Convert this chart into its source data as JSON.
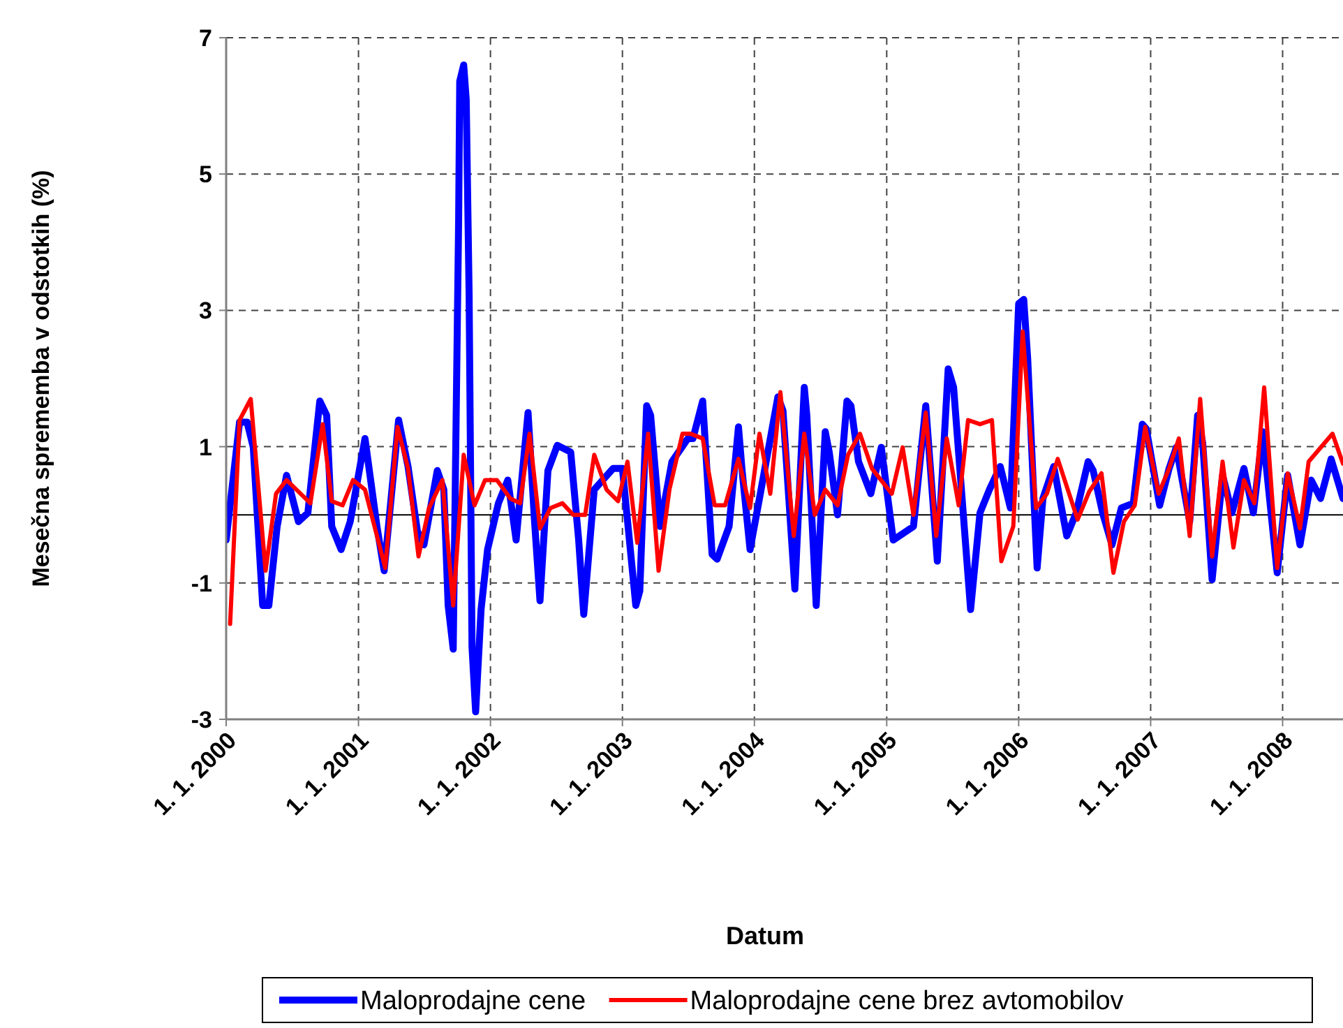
{
  "chart_data": {
    "type": "line",
    "xlabel": "Datum",
    "ylabel": "Mesečna sprememba v odstotkih (%)",
    "xlim": [
      "2000-01-01",
      "2008-06-16"
    ],
    "ylim": [
      -3,
      7
    ],
    "yticks": [
      -3,
      -1,
      1,
      3,
      5,
      7
    ],
    "xticks": [
      {
        "value": "2000-01-01",
        "label": "1. 1. 2000"
      },
      {
        "value": "2001-01-01",
        "label": "1. 1. 2001"
      },
      {
        "value": "2002-01-01",
        "label": "1. 1. 2002"
      },
      {
        "value": "2003-01-01",
        "label": "1. 1. 2003"
      },
      {
        "value": "2004-01-01",
        "label": "1. 1. 2004"
      },
      {
        "value": "2005-01-01",
        "label": "1. 1. 2005"
      },
      {
        "value": "2006-01-01",
        "label": "1. 1. 2006"
      },
      {
        "value": "2007-01-01",
        "label": "1. 1. 2007"
      },
      {
        "value": "2008-01-01",
        "label": "1. 1. 2008"
      }
    ],
    "grid": true,
    "legend": "bottom",
    "line_style": "solid",
    "marker": "none",
    "ref_lines": [
      {
        "axis": "y",
        "value": 0,
        "color": "#000000"
      }
    ],
    "series": [
      {
        "name": "Maloprodajne cene",
        "color": "#0000ff",
        "x": [
          "2000-01-01",
          "2000-02-07",
          "2000-02-28",
          "2000-03-16",
          "2000-04-11",
          "2000-04-28",
          "2000-05-21",
          "2000-06-16",
          "2000-07-19",
          "2000-08-14",
          "2000-09-16",
          "2000-10-05",
          "2000-10-19",
          "2000-11-14",
          "2000-12-09",
          "2001-01-19",
          "2001-02-21",
          "2001-03-13",
          "2001-04-22",
          "2001-05-18",
          "2001-06-13",
          "2001-07-01",
          "2001-08-07",
          "2001-08-25",
          "2001-09-06",
          "2001-09-20",
          "2001-10-05",
          "2001-10-08",
          "2001-10-19",
          "2001-10-26",
          "2001-11-03",
          "2001-11-11",
          "2001-11-21",
          "2001-12-06",
          "2001-12-24",
          "2002-01-23",
          "2002-02-18",
          "2002-03-13",
          "2002-04-15",
          "2002-05-03",
          "2002-05-18",
          "2002-06-09",
          "2002-07-05",
          "2002-08-11",
          "2002-09-02",
          "2002-09-16",
          "2002-10-15",
          "2002-12-06",
          "2003-01-01",
          "2003-02-07",
          "2003-02-18",
          "2003-03-09",
          "2003-03-20",
          "2003-04-15",
          "2003-05-18",
          "2003-07-01",
          "2003-07-15",
          "2003-08-11",
          "2003-09-06",
          "2003-09-20",
          "2003-10-23",
          "2003-11-18",
          "2003-11-28",
          "2003-12-20",
          "2004-01-15",
          "2004-03-06",
          "2004-03-20",
          "2004-04-22",
          "2004-05-18",
          "2004-05-25",
          "2004-06-20",
          "2004-07-15",
          "2004-07-26",
          "2004-08-18",
          "2004-09-13",
          "2004-09-24",
          "2004-10-15",
          "2004-11-18",
          "2004-12-17",
          "2005-01-19",
          "2005-03-16",
          "2005-04-19",
          "2005-05-21",
          "2005-06-20",
          "2005-07-05",
          "2005-08-21",
          "2005-09-16",
          "2005-10-12",
          "2005-11-11",
          "2005-12-09",
          "2006-01-01",
          "2006-01-15",
          "2006-01-26",
          "2006-02-11",
          "2006-02-21",
          "2006-03-09",
          "2006-04-08",
          "2006-05-14",
          "2006-06-09",
          "2006-07-12",
          "2006-07-26",
          "2006-08-21",
          "2006-09-16",
          "2006-10-12",
          "2006-11-14",
          "2006-12-09",
          "2006-12-20",
          "2007-01-26",
          "2007-02-21",
          "2007-03-13",
          "2007-04-19",
          "2007-05-11",
          "2007-05-25",
          "2007-06-20",
          "2007-07-19",
          "2007-08-14",
          "2007-09-16",
          "2007-10-12",
          "2007-11-07",
          "2007-12-17",
          "2008-01-15",
          "2008-02-18",
          "2008-03-20",
          "2008-04-15",
          "2008-05-14",
          "2008-06-16"
        ],
        "values": [
          -0.37,
          1.36,
          1.36,
          0.99,
          -1.33,
          -1.33,
          -0.17,
          0.58,
          -0.1,
          0.03,
          1.67,
          1.46,
          -0.17,
          -0.51,
          -0.1,
          1.12,
          -0.17,
          -0.82,
          1.39,
          0.71,
          -0.24,
          -0.44,
          0.65,
          0.37,
          -1.33,
          -1.97,
          4.32,
          6.36,
          6.6,
          6.09,
          3.23,
          -1.94,
          -2.89,
          -1.39,
          -0.51,
          0.17,
          0.51,
          -0.37,
          1.5,
          -0.1,
          -1.26,
          0.65,
          1.02,
          0.92,
          -0.37,
          -1.46,
          0.37,
          0.68,
          0.68,
          -1.33,
          -1.12,
          1.6,
          1.46,
          -0.17,
          0.78,
          1.12,
          1.12,
          1.67,
          -0.58,
          -0.65,
          -0.17,
          1.29,
          0.65,
          -0.51,
          0.24,
          1.73,
          1.53,
          -1.09,
          1.87,
          1.46,
          -1.33,
          1.22,
          0.92,
          0,
          1.67,
          1.6,
          0.78,
          0.31,
          0.99,
          -0.37,
          -0.17,
          1.6,
          -0.68,
          2.14,
          1.87,
          -1.39,
          0.03,
          0.37,
          0.71,
          0.1,
          3.1,
          3.16,
          2.28,
          0.37,
          -0.78,
          0.24,
          0.71,
          -0.31,
          0.03,
          0.78,
          0.65,
          0.03,
          -0.44,
          0.1,
          0.17,
          1.33,
          1.26,
          0.14,
          0.68,
          0.99,
          -0.1,
          1.46,
          1.05,
          -0.95,
          0.58,
          0.03,
          0.68,
          0.03,
          1.22,
          -0.85,
          0.58,
          -0.44,
          0.51,
          0.24,
          0.82,
          0.24
        ]
      },
      {
        "name": "Maloprodajne cene brez avtomobilov",
        "color": "#ff0000",
        "x": [
          "2000-01-12",
          "2000-02-07",
          "2000-03-09",
          "2000-04-19",
          "2000-05-18",
          "2000-06-16",
          "2000-08-21",
          "2000-09-24",
          "2000-10-19",
          "2000-11-18",
          "2000-12-17",
          "2001-01-19",
          "2001-03-16",
          "2001-04-19",
          "2001-05-18",
          "2001-06-16",
          "2001-07-15",
          "2001-08-21",
          "2001-09-20",
          "2001-10-19",
          "2001-11-18",
          "2001-12-17",
          "2002-01-19",
          "2002-02-25",
          "2002-03-24",
          "2002-04-19",
          "2002-05-18",
          "2002-06-16",
          "2002-07-19",
          "2002-08-18",
          "2002-09-20",
          "2002-10-15",
          "2002-11-18",
          "2002-12-20",
          "2003-01-15",
          "2003-02-11",
          "2003-03-13",
          "2003-04-11",
          "2003-05-11",
          "2003-06-16",
          "2003-07-08",
          "2003-08-11",
          "2003-09-13",
          "2003-10-12",
          "2003-11-18",
          "2003-12-20",
          "2004-01-15",
          "2004-02-14",
          "2004-03-13",
          "2004-04-19",
          "2004-05-18",
          "2004-06-16",
          "2004-07-15",
          "2004-08-18",
          "2004-09-16",
          "2004-10-19",
          "2004-11-21",
          "2005-01-15",
          "2005-02-14",
          "2005-03-16",
          "2005-04-19",
          "2005-05-18",
          "2005-06-16",
          "2005-07-19",
          "2005-08-14",
          "2005-09-16",
          "2005-10-19",
          "2005-11-14",
          "2005-12-17",
          "2006-01-12",
          "2006-02-18",
          "2006-03-20",
          "2006-04-19",
          "2006-06-13",
          "2006-07-15",
          "2006-08-18",
          "2006-09-20",
          "2006-10-19",
          "2006-11-18",
          "2006-12-17",
          "2007-01-23",
          "2007-02-21",
          "2007-03-20",
          "2007-04-19",
          "2007-05-18",
          "2007-06-20",
          "2007-07-19",
          "2007-08-18",
          "2007-09-16",
          "2007-10-15",
          "2007-11-11",
          "2007-12-17",
          "2008-01-15",
          "2008-02-18",
          "2008-03-13",
          "2008-05-18",
          "2008-06-16"
        ],
        "values": [
          -1.6,
          1.39,
          1.7,
          -0.82,
          0.31,
          0.51,
          0.17,
          1.33,
          0.2,
          0.14,
          0.51,
          0.37,
          -0.78,
          1.29,
          0.68,
          -0.61,
          0.1,
          0.51,
          -1.33,
          0.88,
          0.14,
          0.51,
          0.51,
          0.24,
          0.17,
          1.19,
          -0.2,
          0.1,
          0.17,
          0,
          0,
          0.88,
          0.37,
          0.2,
          0.78,
          -0.41,
          1.19,
          -0.82,
          0.37,
          1.19,
          1.19,
          1.12,
          0.14,
          0.14,
          0.82,
          0.1,
          1.19,
          0.31,
          1.8,
          -0.31,
          1.19,
          0,
          0.37,
          0.14,
          0.88,
          1.19,
          0.68,
          0.31,
          0.99,
          0,
          1.5,
          -0.31,
          1.12,
          0.14,
          1.39,
          1.33,
          1.39,
          -0.68,
          -0.17,
          2.69,
          0.1,
          0.31,
          0.82,
          -0.07,
          0.34,
          0.61,
          -0.85,
          -0.1,
          0.14,
          1.29,
          0.31,
          0.68,
          1.12,
          -0.31,
          1.7,
          -0.61,
          0.78,
          -0.48,
          0.51,
          0.17,
          1.87,
          -0.78,
          0.61,
          -0.2,
          0.78,
          1.19,
          0.75
        ]
      }
    ]
  }
}
